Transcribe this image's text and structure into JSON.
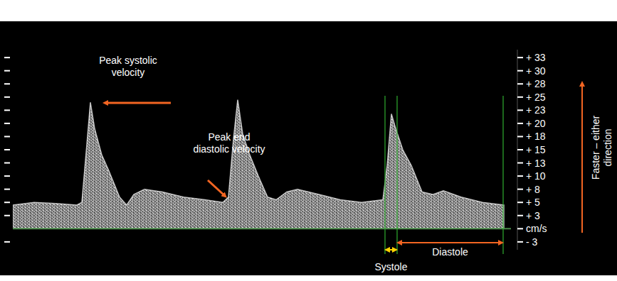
{
  "chart_data": {
    "type": "area",
    "x": [
      0,
      30,
      60,
      90,
      97,
      104,
      109,
      115,
      125,
      135,
      150,
      160,
      170,
      185,
      210,
      240,
      270,
      295,
      303,
      310,
      316,
      323,
      333,
      345,
      358,
      370,
      385,
      400,
      430,
      460,
      490,
      520,
      526,
      532,
      538,
      548,
      560,
      575,
      590,
      605,
      630,
      660,
      690
    ],
    "values": [
      4.5,
      5,
      4.8,
      4.5,
      5,
      16,
      24,
      19,
      14,
      11,
      6,
      4.5,
      6.5,
      7.5,
      7,
      6,
      5.5,
      5,
      6,
      17,
      24.5,
      18,
      14,
      10,
      6,
      5.5,
      7,
      7.5,
      6.5,
      5.5,
      5,
      5.5,
      12,
      21.8,
      19,
      15,
      12,
      7,
      6.5,
      7.2,
      6,
      5,
      4.5
    ],
    "color": "#e6e6e6",
    "xlim": [
      0,
      700
    ],
    "ylim": [
      -4,
      34
    ],
    "yticks": [
      {
        "value": 32.5,
        "label": "+ 33"
      },
      {
        "value": 30,
        "label": "+ 30"
      },
      {
        "value": 27.5,
        "label": "+ 28"
      },
      {
        "value": 25,
        "label": "+ 25"
      },
      {
        "value": 22.5,
        "label": "+ 23"
      },
      {
        "value": 20,
        "label": "+ 20"
      },
      {
        "value": 17.5,
        "label": "+ 18"
      },
      {
        "value": 15,
        "label": "+ 15"
      },
      {
        "value": 12.5,
        "label": "+ 13"
      },
      {
        "value": 10,
        "label": "+ 10"
      },
      {
        "value": 7.5,
        "label": "+ 8"
      },
      {
        "value": 5,
        "label": "+ 5"
      },
      {
        "value": 2.5,
        "label": "+ 3"
      },
      {
        "value": -2.5,
        "label": "- 3"
      }
    ],
    "y_label": "cm/s",
    "tick_labels": "y",
    "annotations": [
      "Peak systolic\nvelocity",
      "Peak end\ndiastolic velocity",
      "Faster – either\ndirection"
    ],
    "intervals": [
      {
        "label": "Systole",
        "x": [
          523,
          540
        ]
      },
      {
        "label": "Diastole",
        "x": [
          540,
          689
        ]
      }
    ]
  }
}
